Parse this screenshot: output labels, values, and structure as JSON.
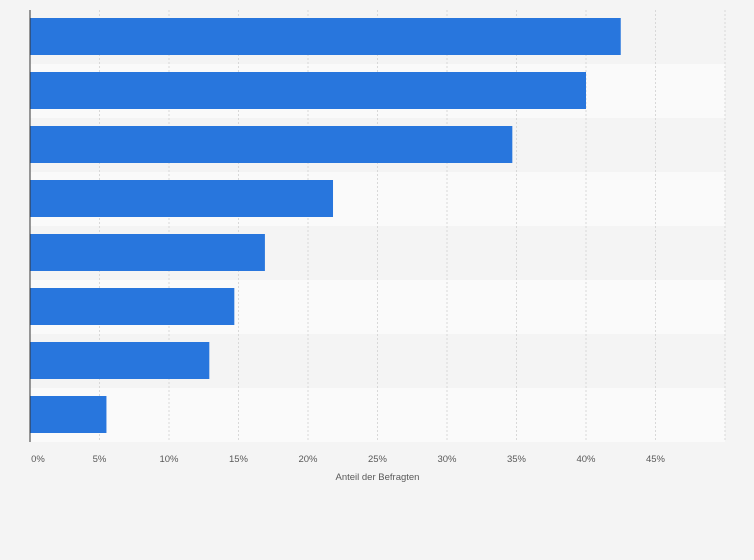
{
  "colors": {
    "background": "#f4f4f4",
    "band_light": "#fafafa",
    "band_dark": "#f4f4f4",
    "bar": "#2876dd",
    "grid": "#d8d8d8",
    "axis": "#333333",
    "text": "#595959"
  },
  "chart_data": {
    "type": "bar",
    "orientation": "horizontal",
    "title": "",
    "xlabel": "Anteil der Befragten",
    "ylabel": "",
    "categories": [
      "",
      "",
      "",
      "",
      "",
      "",
      "",
      ""
    ],
    "values": [
      42.5,
      40.0,
      34.7,
      21.8,
      16.9,
      14.7,
      12.9,
      5.5
    ],
    "xlim": [
      0,
      50
    ],
    "ticks": [
      0,
      5,
      10,
      15,
      20,
      25,
      30,
      35,
      40,
      45
    ],
    "tick_labels": [
      "0%",
      "5%",
      "10%",
      "15%",
      "20%",
      "25%",
      "30%",
      "35%",
      "40%",
      "45%"
    ],
    "grid": true,
    "legend": "none"
  }
}
